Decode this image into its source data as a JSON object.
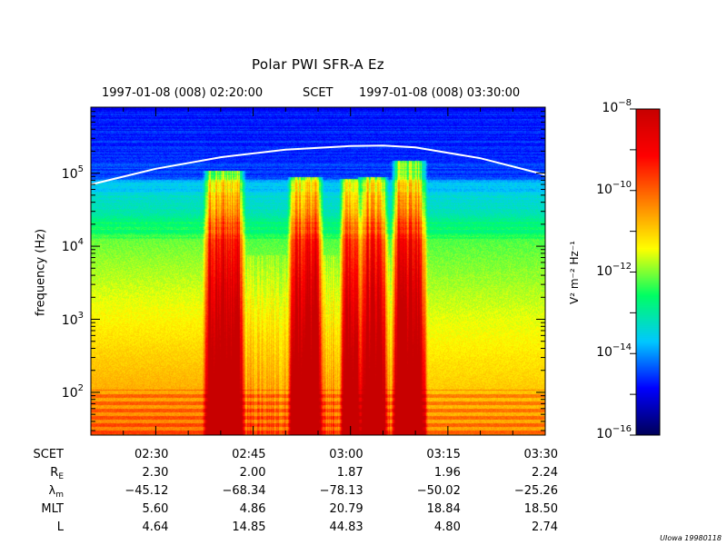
{
  "title": "Polar PWI SFR-A Ez",
  "header": {
    "start_time": "1997-01-08 (008) 02:20:00",
    "center_label": "SCET",
    "end_time": "1997-01-08 (008) 03:30:00"
  },
  "chart_data": {
    "type": "heatmap",
    "title": "Polar PWI SFR-A Ez",
    "xlabel": "",
    "ylabel": "frequency (Hz)",
    "x_range": [
      "02:20:00",
      "03:30:00"
    ],
    "x_ticks": [
      "02:30",
      "02:45",
      "03:00",
      "03:15",
      "03:30"
    ],
    "y_scale": "log",
    "ylim": [
      26,
      800000
    ],
    "y_ticks": [
      {
        "base": "10",
        "exp": "2",
        "value": 100
      },
      {
        "base": "10",
        "exp": "3",
        "value": 1000
      },
      {
        "base": "10",
        "exp": "4",
        "value": 10000
      },
      {
        "base": "10",
        "exp": "5",
        "value": 100000
      }
    ],
    "colorbar": {
      "label": "V² m⁻² Hz⁻¹",
      "scale": "log",
      "range": [
        1e-16,
        1e-08
      ],
      "ticks": [
        {
          "base": "10",
          "exp": "−8",
          "value": 1e-08
        },
        {
          "base": "10",
          "exp": "−10",
          "value": 1e-10
        },
        {
          "base": "10",
          "exp": "−12",
          "value": 1e-12
        },
        {
          "base": "10",
          "exp": "−14",
          "value": 1e-14
        },
        {
          "base": "10",
          "exp": "−16",
          "value": 1e-16
        }
      ],
      "colors": [
        "#00005a",
        "#0000ff",
        "#00c8ff",
        "#00ff64",
        "#ffff00",
        "#ff8000",
        "#ff0000",
        "#c80000"
      ]
    },
    "overlay_line": {
      "description": "white curve",
      "points": [
        {
          "t": "02:20",
          "f": 70000
        },
        {
          "t": "02:30",
          "f": 115000
        },
        {
          "t": "02:40",
          "f": 165000
        },
        {
          "t": "02:50",
          "f": 210000
        },
        {
          "t": "03:00",
          "f": 235000
        },
        {
          "t": "03:05",
          "f": 238000
        },
        {
          "t": "03:10",
          "f": 225000
        },
        {
          "t": "03:20",
          "f": 160000
        },
        {
          "t": "03:30",
          "f": 95000
        }
      ]
    },
    "features": {
      "bursts": [
        {
          "start": "02:38",
          "end": "02:43",
          "top_freq": 110000
        },
        {
          "start": "02:51",
          "end": "02:55",
          "top_freq": 90000
        },
        {
          "start": "02:59",
          "end": "03:01",
          "top_freq": 85000
        },
        {
          "start": "03:02",
          "end": "03:05",
          "top_freq": 90000
        },
        {
          "start": "03:07",
          "end": "03:11",
          "top_freq": 150000
        }
      ]
    }
  },
  "ephemeris": {
    "rows": [
      {
        "label": "SCET",
        "values": [
          "02:30",
          "02:45",
          "03:00",
          "03:15",
          "03:30"
        ]
      },
      {
        "label": "R",
        "label_sub": "E",
        "values": [
          "2.30",
          "2.00",
          "1.87",
          "1.96",
          "2.24"
        ]
      },
      {
        "label": "λ",
        "label_sub": "m",
        "values": [
          "−45.12",
          "−68.34",
          "−78.13",
          "−50.02",
          "−25.26"
        ]
      },
      {
        "label": "MLT",
        "values": [
          "5.60",
          "4.86",
          "20.79",
          "18.84",
          "18.50"
        ]
      },
      {
        "label": "L",
        "values": [
          "4.64",
          "14.85",
          "44.83",
          "4.80",
          "2.74"
        ]
      }
    ]
  },
  "credit": "UIowa 19980118"
}
